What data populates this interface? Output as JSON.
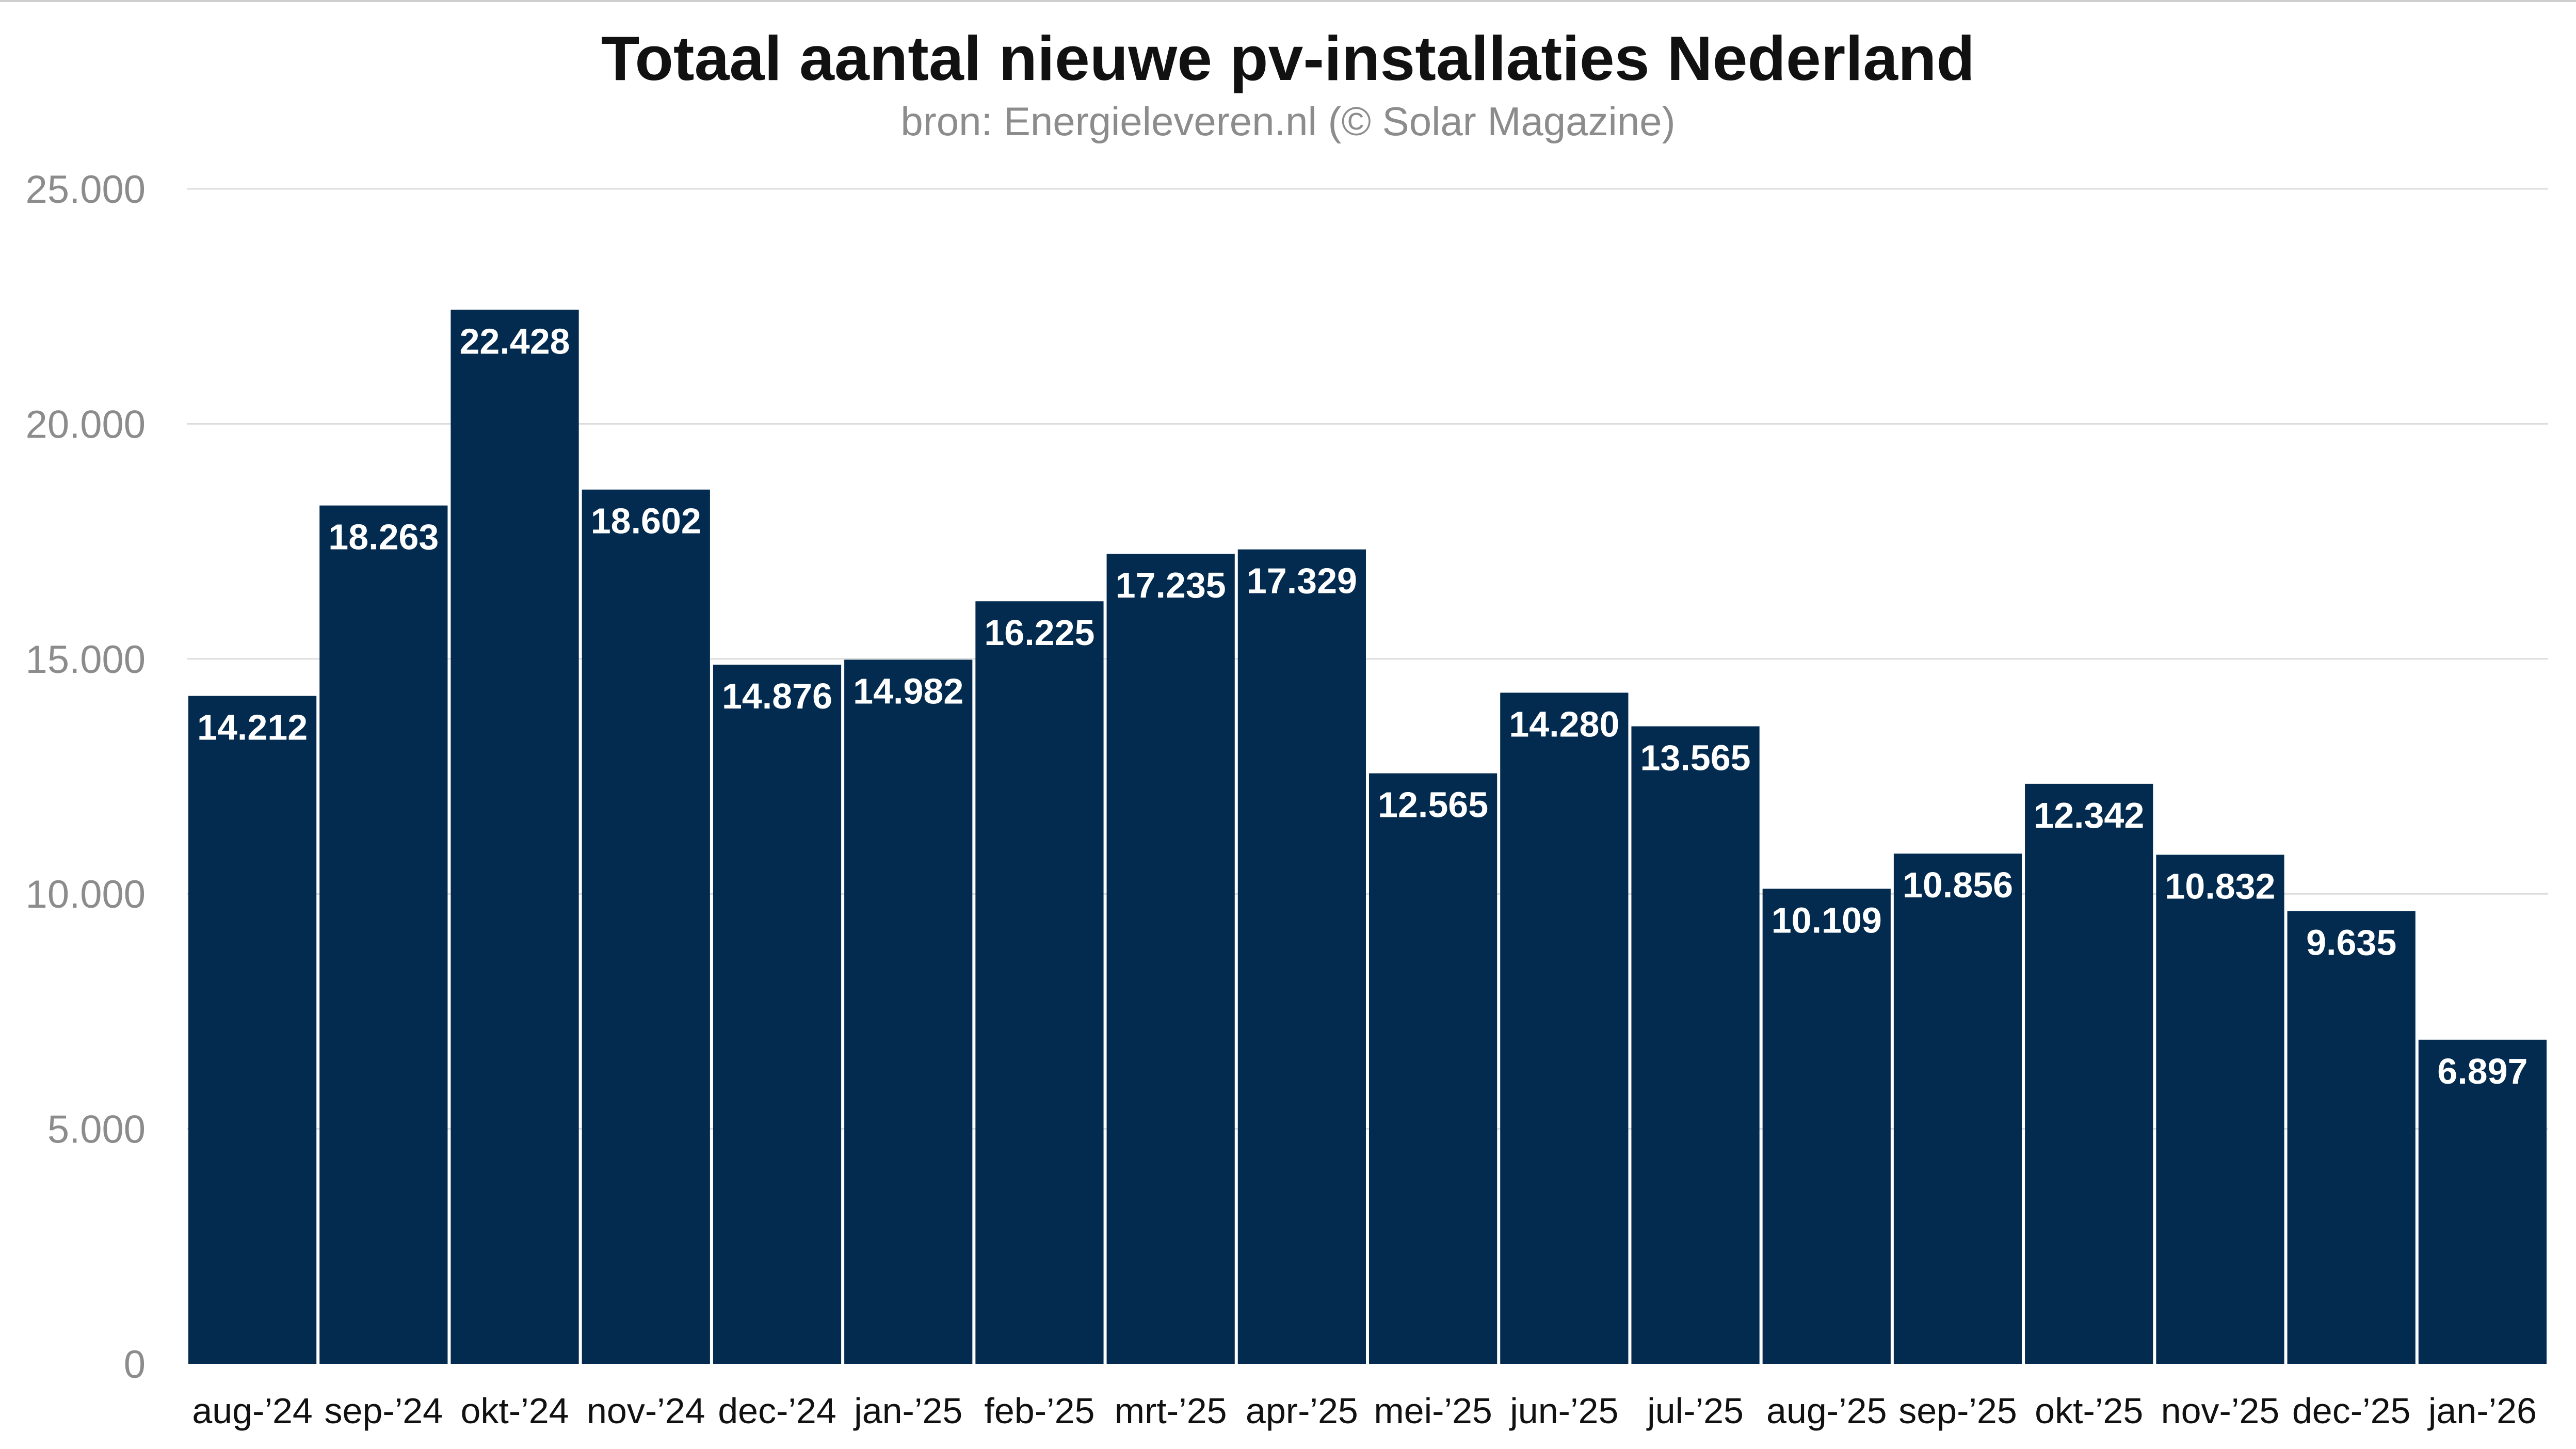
{
  "chart_data": {
    "type": "bar",
    "title": "Totaal aantal nieuwe pv-installaties Nederland",
    "subtitle": "bron: Energieleveren.nl (© Solar Magazine)",
    "categories": [
      "aug-’24",
      "sep-’24",
      "okt-’24",
      "nov-’24",
      "dec-’24",
      "jan-’25",
      "feb-’25",
      "mrt-’25",
      "apr-’25",
      "mei-’25",
      "jun-’25",
      "jul-’25",
      "aug-’25",
      "sep-’25",
      "okt-’25",
      "nov-’25",
      "dec-’25",
      "jan-’26"
    ],
    "values": [
      14212,
      18263,
      22428,
      18602,
      14876,
      14982,
      16225,
      17235,
      17329,
      12565,
      14280,
      13565,
      10109,
      10856,
      12342,
      10832,
      9635,
      6897
    ],
    "data_labels": [
      "14.212",
      "18.263",
      "22.428",
      "18.602",
      "14.876",
      "14.982",
      "16.225",
      "17.235",
      "17.329",
      "12.565",
      "14.280",
      "13.565",
      "10.109",
      "10.856",
      "12.342",
      "10.832",
      "9.635",
      "6.897"
    ],
    "ylim": [
      0,
      25000
    ],
    "yticks": [
      0,
      5000,
      10000,
      15000,
      20000,
      25000
    ],
    "ytick_labels": [
      "0",
      "5.000",
      "10.000",
      "15.000",
      "20.000",
      "25.000"
    ],
    "grid": true,
    "bar_color": "#022b4f"
  }
}
